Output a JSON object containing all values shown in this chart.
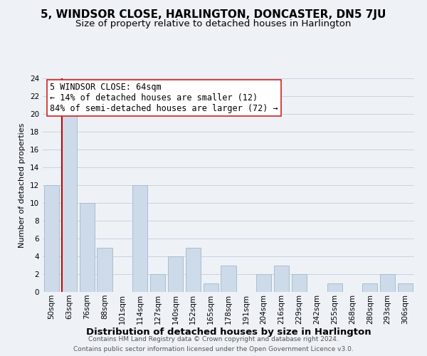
{
  "title": "5, WINDSOR CLOSE, HARLINGTON, DONCASTER, DN5 7JU",
  "subtitle": "Size of property relative to detached houses in Harlington",
  "xlabel": "Distribution of detached houses by size in Harlington",
  "ylabel": "Number of detached properties",
  "bin_labels": [
    "50sqm",
    "63sqm",
    "76sqm",
    "88sqm",
    "101sqm",
    "114sqm",
    "127sqm",
    "140sqm",
    "152sqm",
    "165sqm",
    "178sqm",
    "191sqm",
    "204sqm",
    "216sqm",
    "229sqm",
    "242sqm",
    "255sqm",
    "268sqm",
    "280sqm",
    "293sqm",
    "306sqm"
  ],
  "bar_values": [
    12,
    20,
    10,
    5,
    0,
    12,
    2,
    4,
    5,
    1,
    3,
    0,
    2,
    3,
    2,
    0,
    1,
    0,
    1,
    2,
    1
  ],
  "bar_color": "#cddaea",
  "bar_edge_color": "#a8bece",
  "vline_x_index": 1,
  "vline_color": "#cc0000",
  "ylim": [
    0,
    24
  ],
  "yticks": [
    0,
    2,
    4,
    6,
    8,
    10,
    12,
    14,
    16,
    18,
    20,
    22,
    24
  ],
  "annotation_title": "5 WINDSOR CLOSE: 64sqm",
  "annotation_line1": "← 14% of detached houses are smaller (12)",
  "annotation_line2": "84% of semi-detached houses are larger (72) →",
  "footer1": "Contains HM Land Registry data © Crown copyright and database right 2024.",
  "footer2": "Contains public sector information licensed under the Open Government Licence v3.0.",
  "title_fontsize": 11,
  "subtitle_fontsize": 9.5,
  "xlabel_fontsize": 9.5,
  "ylabel_fontsize": 8,
  "tick_fontsize": 7.5,
  "annotation_fontsize": 8.5,
  "footer_fontsize": 6.5,
  "grid_color": "#c8d4e0",
  "background_color": "#eef2f7"
}
